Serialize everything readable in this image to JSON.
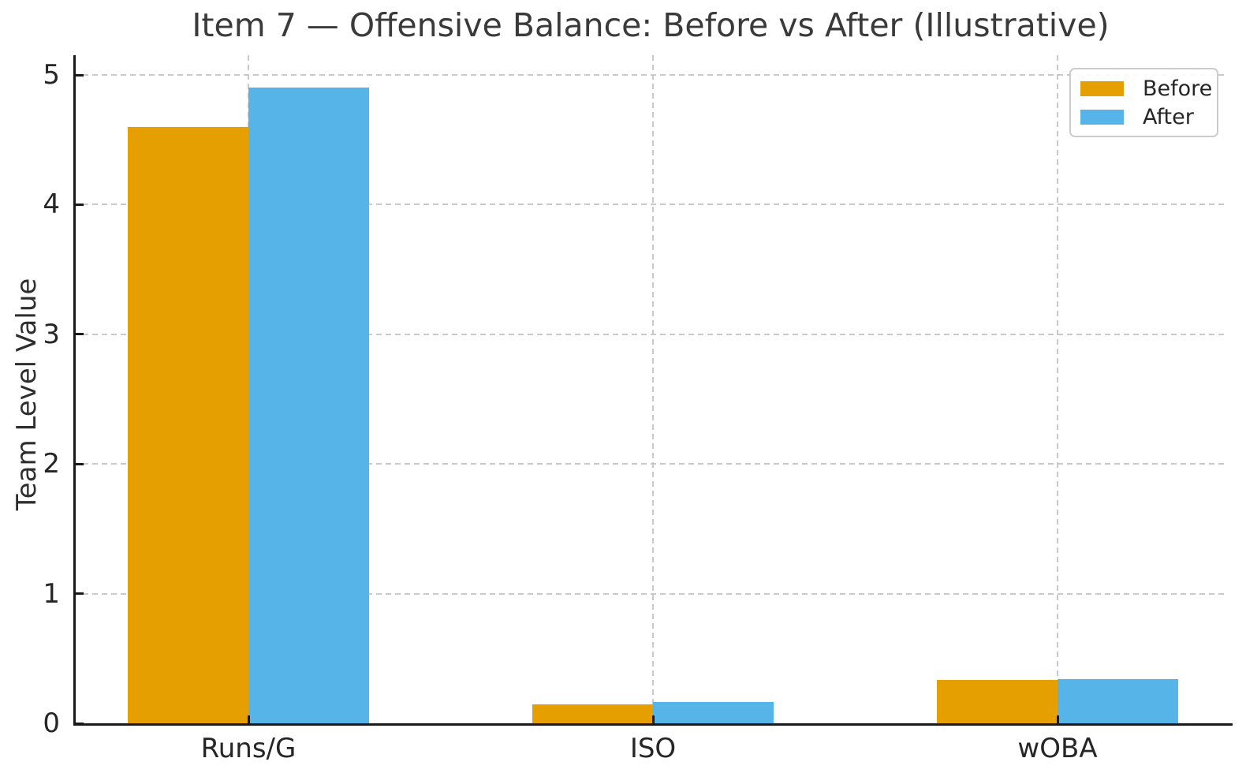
{
  "chart_data": {
    "type": "bar",
    "title": "Item 7 — Offensive Balance: Before vs After (Illustrative)",
    "ylabel": "Team Level Value",
    "xlabel": "",
    "categories": [
      "Runs/G",
      "ISO",
      "wOBA"
    ],
    "series": [
      {
        "name": "Before",
        "color": "#E69F00",
        "values": [
          4.6,
          0.145,
          0.335
        ]
      },
      {
        "name": "After",
        "color": "#56B4E9",
        "values": [
          4.9,
          0.165,
          0.34
        ]
      }
    ],
    "ylim": [
      0,
      5.15
    ],
    "yticks": [
      0,
      1,
      2,
      3,
      4,
      5
    ],
    "grid": true,
    "grid_style": "dashed",
    "legend_position": "upper right"
  },
  "colors": {
    "before": "#E69F00",
    "after": "#56B4E9",
    "gridline": "#c9c9c9",
    "axis": "#1a1a1a",
    "text": "#2e2e2e"
  }
}
